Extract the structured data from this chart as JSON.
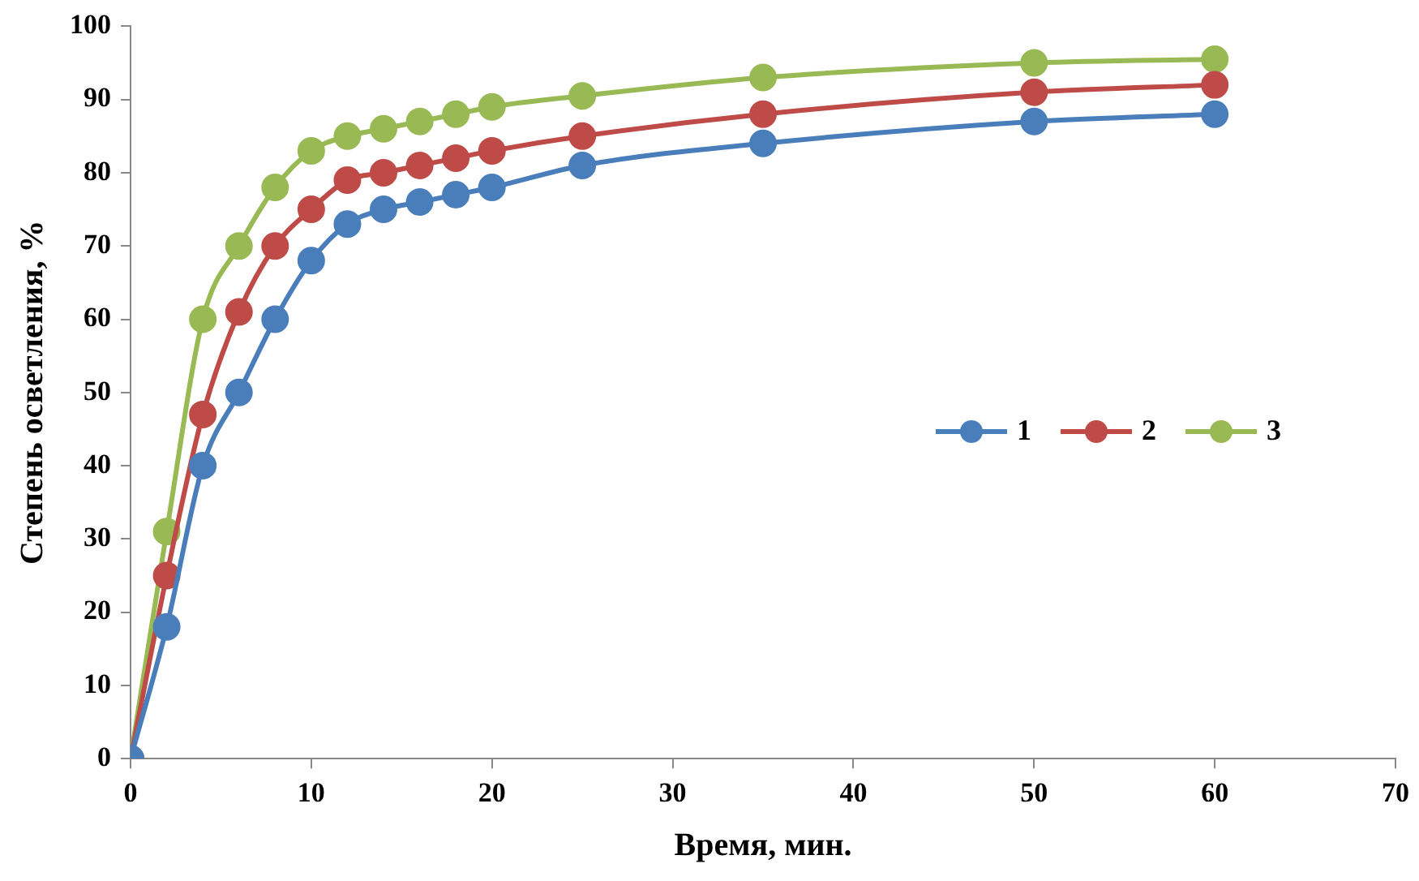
{
  "chart_data": {
    "type": "line",
    "xlabel": "Время, мин.",
    "ylabel": "Степень осветления, %",
    "x": [
      0,
      2,
      4,
      6,
      8,
      10,
      12,
      14,
      16,
      18,
      20,
      25,
      35,
      50,
      60
    ],
    "series": [
      {
        "name": "1",
        "color": "#4a7ebb",
        "values": [
          0,
          18,
          40,
          50,
          60,
          68,
          73,
          75,
          76,
          77,
          78,
          81,
          84,
          87,
          88
        ]
      },
      {
        "name": "2",
        "color": "#be4b48",
        "values": [
          0,
          25,
          47,
          61,
          70,
          75,
          79,
          80,
          81,
          82,
          83,
          85,
          88,
          91,
          92
        ]
      },
      {
        "name": "3",
        "color": "#98b954",
        "values": [
          0,
          31,
          60,
          70,
          78,
          83,
          85,
          86,
          87,
          88,
          89,
          90.5,
          93,
          95,
          95.5
        ]
      }
    ],
    "xlim": [
      0,
      70
    ],
    "xticks": [
      0,
      10,
      20,
      30,
      40,
      50,
      60,
      70
    ],
    "ylim": [
      0,
      100
    ],
    "yticks": [
      0,
      10,
      20,
      30,
      40,
      50,
      60,
      70,
      80,
      90,
      100
    ],
    "grid": false,
    "legend": "right",
    "marker": "circle",
    "line_style": "solid"
  }
}
